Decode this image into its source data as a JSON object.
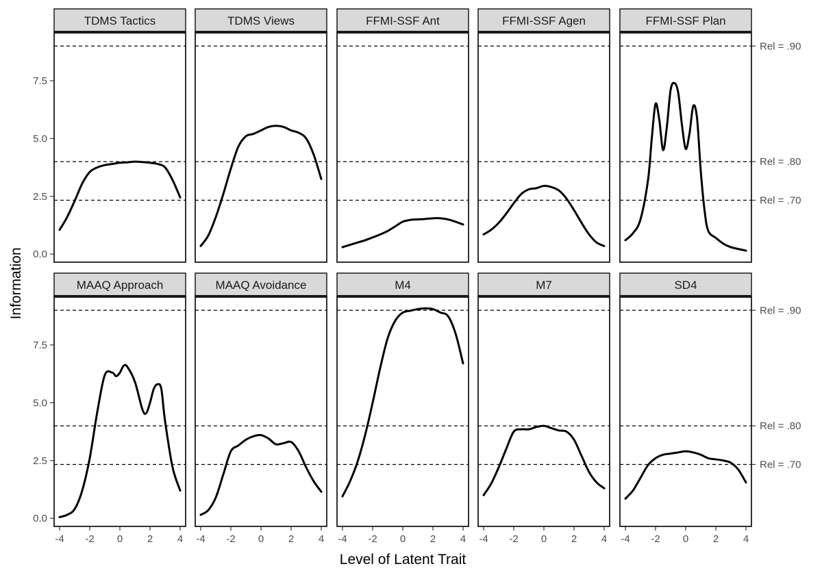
{
  "chart_data": {
    "type": "line",
    "xlabel": "Level of Latent Trait",
    "ylabel": "Information",
    "xlim": [
      -4,
      4
    ],
    "ylim": [
      -0.35,
      9.6
    ],
    "x_ticks": [
      -4,
      -2,
      0,
      2,
      4
    ],
    "x_tick_labels": [
      "-4",
      "-2",
      "0",
      "2",
      "4"
    ],
    "y_ticks": [
      0,
      2.5,
      5,
      7.5
    ],
    "y_tick_labels": [
      "0.0",
      "2.5",
      "5.0",
      "7.5"
    ],
    "grid": false,
    "facet_layout": {
      "rows": 2,
      "cols": 5
    },
    "reference_lines": [
      {
        "label": "Rel = .90",
        "value": 9.0
      },
      {
        "label": "Rel = .80",
        "value": 4.0
      },
      {
        "label": "Rel = .70",
        "value": 2.33
      }
    ],
    "colors": {
      "line": "#000000",
      "strip_fill": "#d9d9d9",
      "panel_border": "#1a1a1a"
    },
    "panels": [
      {
        "name": "TDMS Tactics",
        "x": [
          -4,
          -3.5,
          -3,
          -2.5,
          -2,
          -1.5,
          -1,
          -0.5,
          0,
          0.5,
          1,
          1.5,
          2,
          2.5,
          3,
          3.5,
          4
        ],
        "y": [
          1.05,
          1.6,
          2.3,
          3.05,
          3.55,
          3.75,
          3.85,
          3.9,
          3.95,
          3.97,
          4.0,
          3.98,
          3.95,
          3.9,
          3.75,
          3.2,
          2.45
        ]
      },
      {
        "name": "TDMS Views",
        "x": [
          -4,
          -3.5,
          -3,
          -2.5,
          -2,
          -1.5,
          -1,
          -0.5,
          0,
          0.5,
          1,
          1.5,
          2,
          2.5,
          3,
          3.5,
          4
        ],
        "y": [
          0.35,
          0.8,
          1.6,
          2.6,
          3.7,
          4.65,
          5.1,
          5.2,
          5.35,
          5.5,
          5.55,
          5.5,
          5.35,
          5.25,
          5.0,
          4.3,
          3.25
        ]
      },
      {
        "name": "FFMI-SSF Ant",
        "x": [
          -4,
          -3.5,
          -3,
          -2.5,
          -2,
          -1.5,
          -1,
          -0.5,
          0,
          0.5,
          1,
          1.5,
          2,
          2.5,
          3,
          3.5,
          4
        ],
        "y": [
          0.3,
          0.4,
          0.5,
          0.6,
          0.72,
          0.85,
          1.0,
          1.2,
          1.4,
          1.48,
          1.5,
          1.52,
          1.55,
          1.55,
          1.5,
          1.4,
          1.28
        ]
      },
      {
        "name": "FFMI-SSF Agen",
        "x": [
          -4,
          -3.5,
          -3,
          -2.5,
          -2,
          -1.5,
          -1,
          -0.5,
          0,
          0.5,
          1,
          1.5,
          2,
          2.5,
          3,
          3.5,
          4
        ],
        "y": [
          0.85,
          1.05,
          1.35,
          1.75,
          2.2,
          2.6,
          2.8,
          2.85,
          2.95,
          2.9,
          2.75,
          2.4,
          1.9,
          1.35,
          0.85,
          0.5,
          0.35
        ]
      },
      {
        "name": "FFMI-SSF Plan",
        "x": [
          -4,
          -3.5,
          -3,
          -2.5,
          -2.25,
          -2,
          -1.75,
          -1.5,
          -1.25,
          -1,
          -0.75,
          -0.5,
          -0.25,
          0,
          0.25,
          0.5,
          0.75,
          1,
          1.25,
          1.5,
          2,
          2.5,
          3,
          3.5,
          4
        ],
        "y": [
          0.6,
          0.9,
          1.5,
          3.2,
          5.0,
          6.5,
          5.8,
          4.5,
          5.5,
          7.1,
          7.4,
          7.0,
          5.6,
          4.55,
          5.2,
          6.4,
          5.9,
          3.6,
          1.9,
          1.0,
          0.7,
          0.45,
          0.3,
          0.22,
          0.15
        ]
      },
      {
        "name": "MAAQ Approach",
        "x": [
          -4,
          -3.5,
          -3,
          -2.5,
          -2,
          -1.5,
          -1,
          -0.5,
          -0.25,
          0,
          0.25,
          0.5,
          1,
          1.5,
          1.75,
          2,
          2.25,
          2.5,
          2.75,
          3,
          3.5,
          4
        ],
        "y": [
          0.05,
          0.15,
          0.4,
          1.2,
          2.6,
          4.6,
          6.2,
          6.3,
          6.15,
          6.3,
          6.6,
          6.55,
          5.9,
          4.7,
          4.55,
          5.0,
          5.6,
          5.8,
          5.6,
          4.2,
          2.2,
          1.2
        ]
      },
      {
        "name": "MAAQ Avoidance",
        "x": [
          -4,
          -3.5,
          -3,
          -2.5,
          -2,
          -1.5,
          -1,
          -0.5,
          0,
          0.5,
          1,
          1.5,
          2,
          2.5,
          3,
          3.5,
          4
        ],
        "y": [
          0.15,
          0.35,
          0.9,
          1.9,
          2.9,
          3.15,
          3.4,
          3.55,
          3.6,
          3.45,
          3.2,
          3.25,
          3.3,
          2.9,
          2.2,
          1.6,
          1.15
        ]
      },
      {
        "name": "M4",
        "x": [
          -4,
          -3.5,
          -3,
          -2.5,
          -2,
          -1.5,
          -1,
          -0.5,
          0,
          0.5,
          1,
          1.5,
          2,
          2.5,
          3,
          3.5,
          4
        ],
        "y": [
          0.95,
          1.6,
          2.45,
          3.6,
          5.0,
          6.5,
          7.8,
          8.55,
          8.9,
          8.98,
          9.05,
          9.08,
          9.05,
          8.9,
          8.75,
          8.0,
          6.7
        ]
      },
      {
        "name": "M7",
        "x": [
          -4,
          -3.5,
          -3,
          -2.5,
          -2,
          -1.5,
          -1,
          -0.5,
          0,
          0.5,
          1,
          1.5,
          2,
          2.5,
          3,
          3.5,
          4
        ],
        "y": [
          1.0,
          1.5,
          2.2,
          3.0,
          3.75,
          3.85,
          3.85,
          3.95,
          4.0,
          3.9,
          3.8,
          3.75,
          3.4,
          2.7,
          2.0,
          1.55,
          1.3
        ]
      },
      {
        "name": "SD4",
        "x": [
          -4,
          -3.5,
          -3,
          -2.5,
          -2,
          -1.5,
          -1,
          -0.5,
          0,
          0.5,
          1,
          1.5,
          2,
          2.5,
          3,
          3.5,
          4
        ],
        "y": [
          0.85,
          1.2,
          1.75,
          2.3,
          2.6,
          2.75,
          2.8,
          2.85,
          2.9,
          2.85,
          2.75,
          2.6,
          2.55,
          2.5,
          2.4,
          2.1,
          1.55
        ]
      }
    ]
  }
}
